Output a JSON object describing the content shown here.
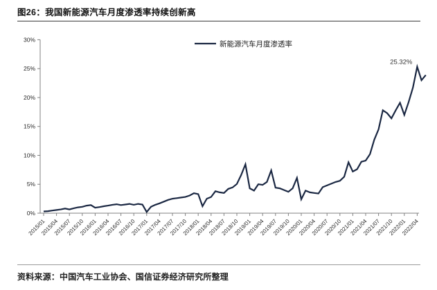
{
  "figure": {
    "title": "图26：我国新能源汽车月度渗透率持续创新高",
    "source": "资料来源：中国汽车工业协会、国信证券经济研究所整理"
  },
  "chart_data": {
    "type": "line",
    "title": "图26：我国新能源汽车月度渗透率持续创新高",
    "xlabel": "",
    "ylabel": "",
    "x_start": "2015/01",
    "x_frequency": "monthly",
    "x_end": "2022/06",
    "series": [
      {
        "name": "新能源汽车月度渗透率",
        "values": [
          0.3,
          0.35,
          0.45,
          0.55,
          0.65,
          0.8,
          0.65,
          0.85,
          1.0,
          1.1,
          1.3,
          1.4,
          0.95,
          1.05,
          1.2,
          1.3,
          1.45,
          1.55,
          1.4,
          1.5,
          1.6,
          1.45,
          1.6,
          1.5,
          0.2,
          1.1,
          1.45,
          1.7,
          2.0,
          2.3,
          2.5,
          2.6,
          2.7,
          2.8,
          3.05,
          3.45,
          3.3,
          1.2,
          2.5,
          2.8,
          3.8,
          3.6,
          3.5,
          4.2,
          4.45,
          5.05,
          6.6,
          8.45,
          4.3,
          3.9,
          5.0,
          4.9,
          5.4,
          7.4,
          4.4,
          4.3,
          4.0,
          3.7,
          4.3,
          6.1,
          2.4,
          3.9,
          3.6,
          3.5,
          3.4,
          4.5,
          4.8,
          5.1,
          5.4,
          5.6,
          6.3,
          8.8,
          7.2,
          7.6,
          8.9,
          9.1,
          10.2,
          12.7,
          14.5,
          17.8,
          17.3,
          16.4,
          17.8,
          19.1,
          17.0,
          19.2,
          21.7,
          25.32,
          23.0,
          23.9
        ]
      }
    ],
    "y_ticks": [
      "0%",
      "5%",
      "10%",
      "15%",
      "20%",
      "25%",
      "30%"
    ],
    "ylim": [
      0,
      30
    ],
    "y_tick_step": 5,
    "x_tick_labels": [
      "2015/01",
      "2015/04",
      "2015/07",
      "2015/10",
      "2016/01",
      "2016/04",
      "2016/07",
      "2016/10",
      "2017/01",
      "2017/04",
      "2017/07",
      "2017/10",
      "2018/01",
      "2018/04",
      "2018/07",
      "2018/10",
      "2019/01",
      "2019/04",
      "2019/07",
      "2019/10",
      "2020/01",
      "2020/04",
      "2020/07",
      "2020/10",
      "2021/01",
      "2021/04",
      "2021/07",
      "2021/10",
      "2022/01",
      "2022/04"
    ],
    "x_tick_month_step": 3,
    "legend": {
      "label": "新能源汽车月度渗透率",
      "position": "top-center"
    },
    "annotation": {
      "text": "25.32%",
      "value": 25.32,
      "x_index": 87
    },
    "grid": "off",
    "colors": {
      "line": "#1a2742",
      "axis": "#808080",
      "tick_label": "#262626",
      "annotation_text": "#333333"
    }
  }
}
